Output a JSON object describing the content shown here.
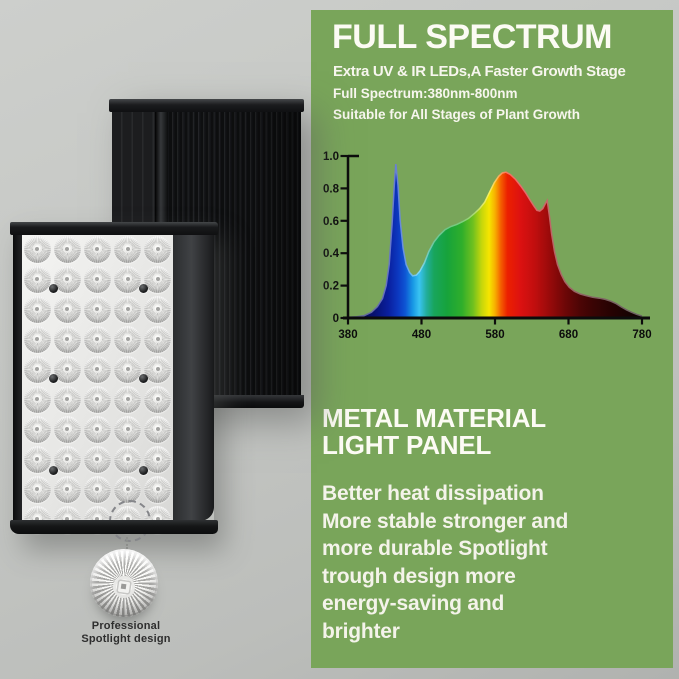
{
  "colors": {
    "green_panel": "#79a55a",
    "panel_text": "#f7f6ee",
    "caption_text": "#2e2e2e",
    "axis": "#0c0c0c",
    "background_gray": "#c4c6c3"
  },
  "left_panel": {
    "caption_line1": "Professional",
    "caption_line2": "Spotlight design",
    "led_grid": {
      "rows": 10,
      "cols": 5
    },
    "screws": [
      [
        31,
        54
      ],
      [
        121,
        54
      ],
      [
        31,
        144
      ],
      [
        121,
        144
      ],
      [
        31,
        236
      ],
      [
        121,
        236
      ]
    ]
  },
  "right_panel": {
    "title": "FULL SPECTRUM",
    "subtitle": "Extra UV & IR LEDs,A Faster Growth Stage",
    "line2": "Full Spectrum:380nm-800nm",
    "line3": "Suitable for All Stages of Plant Growth",
    "section2_title": "METAL MATERIAL\nLIGHT PANEL",
    "body": "Better heat dissipation\nMore stable stronger and\nmore durable Spotlight\ntrough design more\nenergy-saving and\nbrighter"
  },
  "chart_data": {
    "type": "area",
    "title": "",
    "xlabel": "",
    "ylabel": "",
    "xlim": [
      380,
      780
    ],
    "ylim": [
      0,
      1
    ],
    "grid": false,
    "x_ticks": [
      380,
      480,
      580,
      680,
      780
    ],
    "x_tick_labels": [
      "380",
      "480",
      "580",
      "680",
      "780"
    ],
    "y_ticks": [
      0,
      0.2,
      0.4,
      0.6,
      0.8,
      1.0
    ],
    "y_tick_labels": [
      "0",
      "0.2",
      "0.4",
      "0.6",
      "0.8",
      "1.0"
    ],
    "points": [
      [
        380,
        0.005
      ],
      [
        392,
        0.008
      ],
      [
        402,
        0.015
      ],
      [
        412,
        0.035
      ],
      [
        420,
        0.07
      ],
      [
        427,
        0.12
      ],
      [
        432,
        0.2
      ],
      [
        436,
        0.33
      ],
      [
        440,
        0.58
      ],
      [
        443,
        0.82
      ],
      [
        445,
        0.95
      ],
      [
        448,
        0.82
      ],
      [
        451,
        0.6
      ],
      [
        455,
        0.43
      ],
      [
        459,
        0.33
      ],
      [
        464,
        0.28
      ],
      [
        468,
        0.26
      ],
      [
        473,
        0.265
      ],
      [
        478,
        0.29
      ],
      [
        484,
        0.34
      ],
      [
        490,
        0.41
      ],
      [
        497,
        0.47
      ],
      [
        504,
        0.51
      ],
      [
        512,
        0.545
      ],
      [
        520,
        0.565
      ],
      [
        528,
        0.578
      ],
      [
        536,
        0.595
      ],
      [
        544,
        0.615
      ],
      [
        552,
        0.645
      ],
      [
        559,
        0.675
      ],
      [
        566,
        0.715
      ],
      [
        573,
        0.78
      ],
      [
        579,
        0.835
      ],
      [
        585,
        0.875
      ],
      [
        590,
        0.895
      ],
      [
        595,
        0.9
      ],
      [
        601,
        0.885
      ],
      [
        608,
        0.855
      ],
      [
        615,
        0.815
      ],
      [
        622,
        0.77
      ],
      [
        628,
        0.725
      ],
      [
        633,
        0.69
      ],
      [
        637,
        0.665
      ],
      [
        641,
        0.66
      ],
      [
        645,
        0.675
      ],
      [
        649,
        0.71
      ],
      [
        651,
        0.725
      ],
      [
        654,
        0.63
      ],
      [
        657,
        0.52
      ],
      [
        661,
        0.41
      ],
      [
        665,
        0.33
      ],
      [
        670,
        0.27
      ],
      [
        675,
        0.225
      ],
      [
        681,
        0.19
      ],
      [
        688,
        0.165
      ],
      [
        696,
        0.148
      ],
      [
        704,
        0.138
      ],
      [
        713,
        0.128
      ],
      [
        722,
        0.122
      ],
      [
        730,
        0.115
      ],
      [
        738,
        0.103
      ],
      [
        745,
        0.088
      ],
      [
        752,
        0.068
      ],
      [
        759,
        0.05
      ],
      [
        766,
        0.035
      ],
      [
        773,
        0.022
      ],
      [
        780,
        0.012
      ]
    ],
    "gradient_stops": [
      [
        380,
        "#060b3a"
      ],
      [
        415,
        "#07106e"
      ],
      [
        435,
        "#0a1f9e"
      ],
      [
        448,
        "#0c38c0"
      ],
      [
        458,
        "#0e56d4"
      ],
      [
        468,
        "#1797e4"
      ],
      [
        477,
        "#39c3f2"
      ],
      [
        487,
        "#22ad9b"
      ],
      [
        497,
        "#18a55c"
      ],
      [
        515,
        "#17a33b"
      ],
      [
        535,
        "#2fae2b"
      ],
      [
        550,
        "#6fc01f"
      ],
      [
        562,
        "#c6d70b"
      ],
      [
        572,
        "#f6e500"
      ],
      [
        580,
        "#f7b000"
      ],
      [
        588,
        "#f45f00"
      ],
      [
        597,
        "#ec2000"
      ],
      [
        615,
        "#dc1111"
      ],
      [
        635,
        "#bf0e0e"
      ],
      [
        655,
        "#970a0a"
      ],
      [
        675,
        "#6e0707"
      ],
      [
        695,
        "#4d0505"
      ],
      [
        715,
        "#380404"
      ],
      [
        740,
        "#250202"
      ],
      [
        780,
        "#0c0101"
      ]
    ]
  }
}
